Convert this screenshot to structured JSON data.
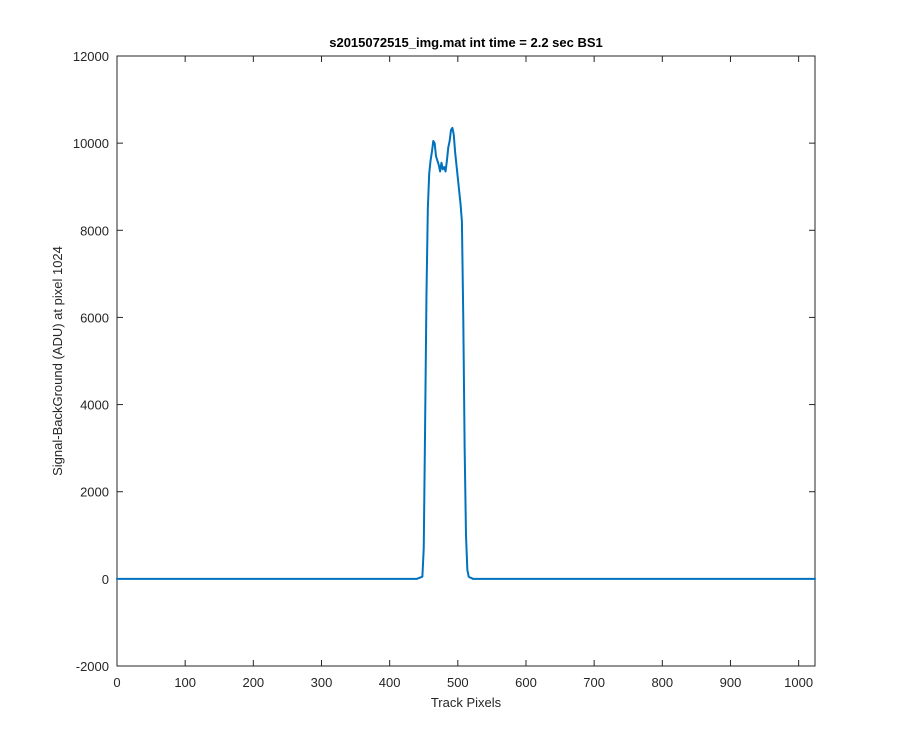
{
  "chart_data": {
    "type": "line",
    "title": "s2015072515_img.mat int time = 2.2 sec   BS1",
    "xlabel": "Track Pixels",
    "ylabel": "Signal-BackGround (ADU) at pixel 1024",
    "xlim": [
      0,
      1024
    ],
    "ylim": [
      -2000,
      12000
    ],
    "xticks": [
      0,
      100,
      200,
      300,
      400,
      500,
      600,
      700,
      800,
      900,
      1000
    ],
    "yticks": [
      -2000,
      0,
      2000,
      4000,
      6000,
      8000,
      10000,
      12000
    ],
    "grid": false,
    "series_color": "#0072BD",
    "series": [
      {
        "x": [
          0,
          440,
          448,
          450,
          452,
          454,
          456,
          458,
          460,
          462,
          464,
          466,
          468,
          470,
          472,
          474,
          476,
          478,
          480,
          482,
          484,
          486,
          488,
          490,
          492,
          494,
          496,
          498,
          500,
          502,
          504,
          506,
          508,
          510,
          512,
          514,
          516,
          518,
          520,
          522,
          530,
          1024
        ],
        "y": [
          0,
          0,
          50,
          700,
          3500,
          6500,
          8500,
          9300,
          9600,
          9800,
          10050,
          10000,
          9700,
          9600,
          9500,
          9350,
          9550,
          9400,
          9450,
          9350,
          9600,
          9900,
          10050,
          10300,
          10350,
          10200,
          9800,
          9500,
          9200,
          8900,
          8600,
          8200,
          6000,
          3000,
          1000,
          200,
          50,
          30,
          20,
          0,
          0,
          0
        ]
      }
    ]
  }
}
